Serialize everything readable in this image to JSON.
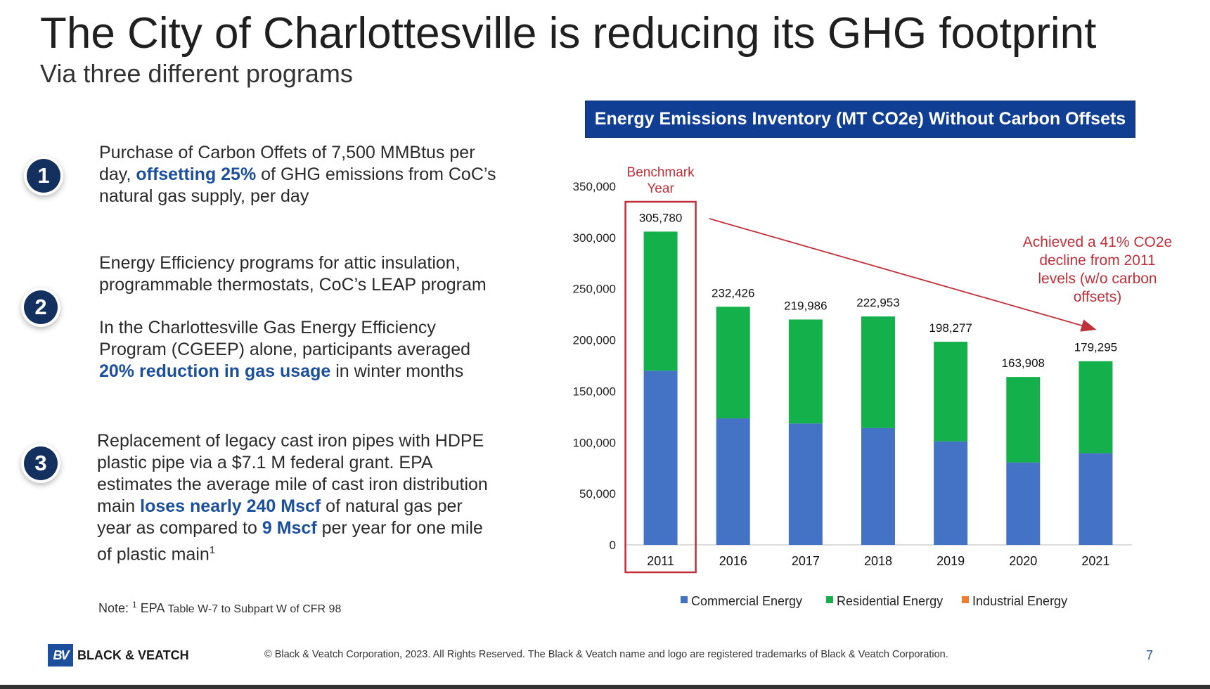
{
  "header": {
    "title": "The City of Charlottesville is reducing its GHG footprint",
    "subtitle": "Via three different programs"
  },
  "programs": [
    {
      "number": "1",
      "paragraphs": [
        [
          {
            "text": "Purchase of Carbon Offets of 7,500 MMBtus per day, "
          },
          {
            "text": "offsetting 25%",
            "hl": true
          },
          {
            "text": " of GHG emissions from CoC’s natural gas supply, per day"
          }
        ]
      ]
    },
    {
      "number": "2",
      "paragraphs": [
        [
          {
            "text": "Energy Efficiency programs for attic insulation, programmable thermostats, CoC’s LEAP program"
          }
        ],
        [
          {
            "text": "In the Charlottesville Gas Energy Efficiency Program (CGEEP) alone, participants averaged "
          },
          {
            "text": "20% reduction in gas usage",
            "hl": true
          },
          {
            "text": " in winter months"
          }
        ]
      ]
    },
    {
      "number": "3",
      "paragraphs": [
        [
          {
            "text": "Replacement of legacy cast iron pipes with HDPE plastic pipe via a $7.1 M federal grant. EPA estimates the average mile of cast iron distribution main "
          },
          {
            "text": "loses nearly 240 Mscf",
            "hl": true
          },
          {
            "text": " of natural gas per year as compared to "
          },
          {
            "text": "9 Mscf",
            "hl": true
          },
          {
            "text": " per year for one mile of plastic main"
          },
          {
            "text": "1",
            "sup": true
          }
        ]
      ]
    }
  ],
  "note": {
    "prefix": "Note: ",
    "sup": "1",
    "source": " EPA ",
    "detail": "Table W-7 to Subpart W of CFR 98"
  },
  "chart_data": {
    "type": "bar",
    "stacked": true,
    "title": "Energy Emissions Inventory (MT CO2e) Without Carbon Offsets",
    "categories": [
      "2011",
      "2016",
      "2017",
      "2018",
      "2019",
      "2020",
      "2021"
    ],
    "series": [
      {
        "name": "Commercial Energy",
        "color": "#4472c4",
        "values": [
          170000,
          123500,
          118500,
          114000,
          101000,
          80500,
          89500
        ]
      },
      {
        "name": "Residential Energy",
        "color": "#13b04b",
        "values": [
          135780,
          108926,
          101486,
          108953,
          97277,
          83408,
          89795
        ]
      },
      {
        "name": "Industrial Energy",
        "color": "#ed7d31",
        "values": [
          0,
          0,
          0,
          0,
          0,
          0,
          0
        ]
      }
    ],
    "totals": [
      305780,
      232426,
      219986,
      222953,
      198277,
      163908,
      179295
    ],
    "total_labels": [
      "305,780",
      "232,426",
      "219,986",
      "222,953",
      "198,277",
      "163,908",
      "179,295"
    ],
    "y_ticks": [
      0,
      50000,
      100000,
      150000,
      200000,
      250000,
      300000,
      350000
    ],
    "y_tick_labels": [
      "0",
      "50,000",
      "100,000",
      "150,000",
      "200,000",
      "250,000",
      "300,000",
      "350,000"
    ],
    "ylim": [
      0,
      350000
    ],
    "grid": false,
    "legend_position": "bottom",
    "benchmark_lines": [
      "Benchmark",
      "Year"
    ],
    "annotation_lines": [
      "Achieved a 41% CO2e",
      "decline from 2011",
      "levels (w/o carbon",
      "offsets)"
    ],
    "annotation_color": "#c0303a"
  },
  "footer": {
    "logo_mark": "BV",
    "logo_text": "BLACK & VEATCH",
    "copyright": "© Black & Veatch Corporation, 2023. All Rights Reserved. The Black & Veatch name and logo are registered trademarks of Black & Veatch Corporation.",
    "page_number": "7"
  }
}
